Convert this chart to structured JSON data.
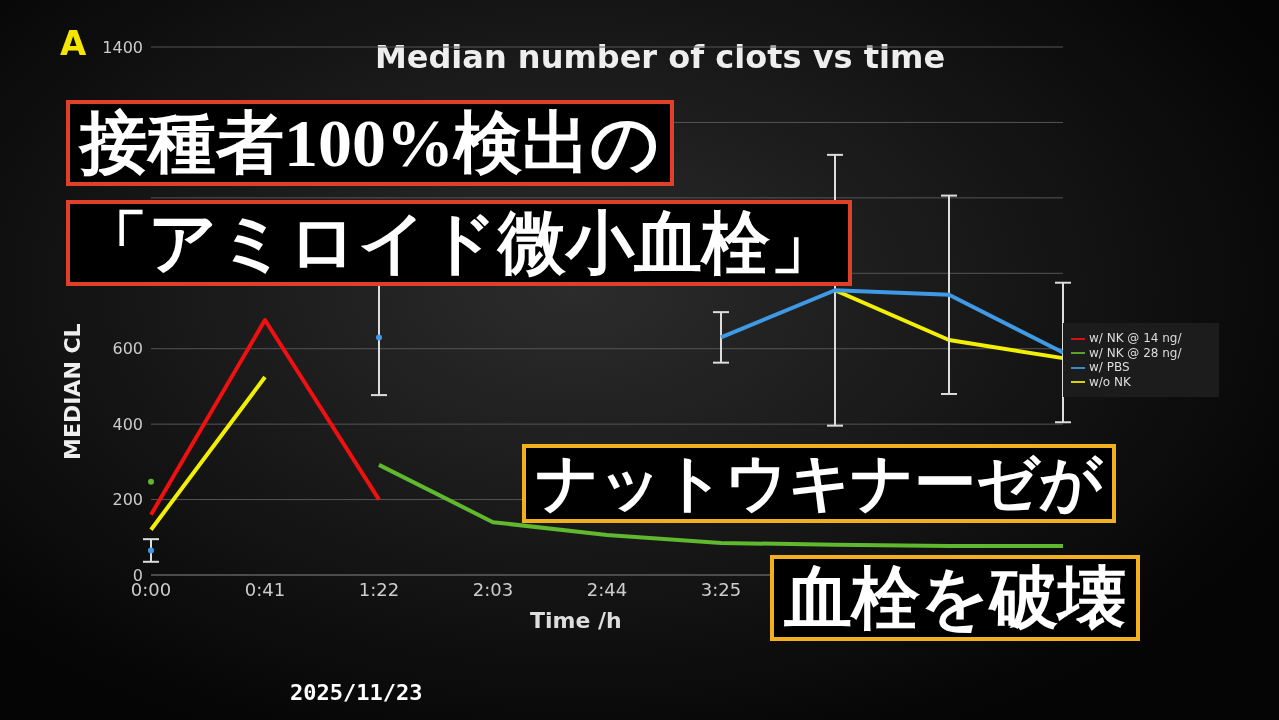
{
  "chart_data": {
    "type": "line",
    "title": "Median number of clots vs time",
    "xlabel": "Time  /h",
    "ylabel": "MEDIAN CL",
    "categories": [
      "0:00",
      "0:41",
      "1:22",
      "2:03",
      "2:44",
      "3:25",
      null,
      null,
      null
    ],
    "series": [
      {
        "name": "w/o NK",
        "color": "#f2f000",
        "values": [
          120,
          525,
          null,
          null,
          null,
          null,
          755,
          623,
          575
        ]
      },
      {
        "name": "w/ PBS",
        "color": "#3f9ae6",
        "values": [
          65,
          null,
          630,
          null,
          null,
          630,
          755,
          743,
          590
        ],
        "errors": [
          30,
          null,
          153,
          null,
          null,
          67,
          359,
          263,
          185
        ]
      },
      {
        "name": "w/ NK @ 28 ng/",
        "color": "#5fb82e",
        "values": [
          247,
          null,
          292,
          140,
          106,
          85,
          80,
          77,
          77
        ]
      },
      {
        "name": "w/ NK @ 14 ng/",
        "color": "#f01010",
        "values": [
          160,
          676,
          200,
          null,
          null,
          null,
          null,
          null,
          null
        ]
      }
    ],
    "ylim": [
      0,
      1400
    ],
    "yticks": [
      0,
      200,
      400,
      600,
      {
        "value": 800,
        "label": null
      },
      {
        "value": 1000,
        "label": null
      },
      {
        "value": 1200,
        "label": null
      },
      1400
    ],
    "grid": "y",
    "legend": "right",
    "marker": "none",
    "line_style": "solid",
    "annotations": [
      "A",
      "接種者100%検出の",
      "「アミロイド微小血栓」",
      "ナットウキナーゼが",
      "血栓を破壊",
      "2025/11/23"
    ]
  }
}
